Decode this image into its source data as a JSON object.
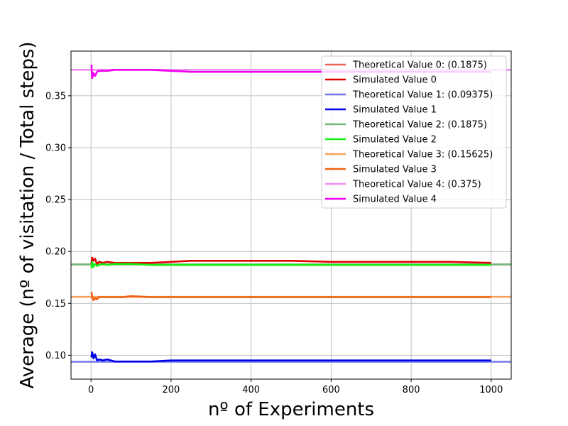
{
  "chart_data": {
    "type": "line",
    "title": "",
    "xlabel": "nº of Experiments",
    "ylabel": "Average (nº of visitation / Total steps)",
    "xlim": [
      -50,
      1050
    ],
    "ylim": [
      0.077,
      0.393
    ],
    "xticks": [
      0,
      200,
      400,
      600,
      800,
      1000
    ],
    "yticks": [
      0.1,
      0.15,
      0.2,
      0.25,
      0.3,
      0.35
    ],
    "xtick_labels": [
      "0",
      "200",
      "400",
      "600",
      "800",
      "1000"
    ],
    "ytick_labels": [
      "0.10",
      "0.15",
      "0.20",
      "0.25",
      "0.30",
      "0.35"
    ],
    "grid": true,
    "legend_position": "top-right",
    "theoretical": [
      {
        "name": "Theoretical Value 0: (0.1875)",
        "value": 0.1875,
        "color": "#f0605a"
      },
      {
        "name": "Theoretical Value 1: (0.09375)",
        "value": 0.09375,
        "color": "#7078f0"
      },
      {
        "name": "Theoretical Value 2: (0.1875)",
        "value": 0.1875,
        "color": "#72b87c"
      },
      {
        "name": "Theoretical Value 3: (0.15625)",
        "value": 0.15625,
        "color": "#f5a35c"
      },
      {
        "name": "Theoretical Value 4: (0.375)",
        "value": 0.375,
        "color": "#ee90ee"
      }
    ],
    "series": [
      {
        "name": "Simulated Value 0",
        "color": "#e00000",
        "x": [
          1,
          3,
          6,
          10,
          15,
          20,
          30,
          40,
          60,
          80,
          100,
          150,
          200,
          250,
          300,
          350,
          400,
          450,
          500,
          600,
          700,
          800,
          900,
          1000
        ],
        "y": [
          0.188,
          0.194,
          0.191,
          0.193,
          0.188,
          0.19,
          0.189,
          0.19,
          0.189,
          0.189,
          0.189,
          0.189,
          0.19,
          0.191,
          0.191,
          0.191,
          0.191,
          0.191,
          0.191,
          0.19,
          0.19,
          0.19,
          0.19,
          0.189
        ]
      },
      {
        "name": "Simulated Value 1",
        "color": "#0000e8",
        "x": [
          1,
          3,
          6,
          10,
          15,
          20,
          30,
          40,
          60,
          80,
          100,
          150,
          200,
          250,
          300,
          350,
          400,
          450,
          500,
          600,
          700,
          800,
          900,
          1000
        ],
        "y": [
          0.098,
          0.103,
          0.097,
          0.101,
          0.095,
          0.096,
          0.095,
          0.096,
          0.094,
          0.094,
          0.094,
          0.094,
          0.095,
          0.095,
          0.095,
          0.095,
          0.095,
          0.095,
          0.095,
          0.095,
          0.095,
          0.095,
          0.095,
          0.095
        ]
      },
      {
        "name": "Simulated Value 2",
        "color": "#16f016",
        "x": [
          1,
          3,
          6,
          10,
          15,
          20,
          30,
          40,
          60,
          80,
          100,
          150,
          200,
          250,
          300,
          350,
          400,
          450,
          500,
          600,
          700,
          800,
          900,
          1000
        ],
        "y": [
          0.184,
          0.19,
          0.185,
          0.188,
          0.186,
          0.187,
          0.188,
          0.187,
          0.188,
          0.188,
          0.188,
          0.187,
          0.187,
          0.187,
          0.187,
          0.187,
          0.187,
          0.187,
          0.187,
          0.187,
          0.187,
          0.187,
          0.187,
          0.187
        ]
      },
      {
        "name": "Simulated Value 3",
        "color": "#f06010",
        "x": [
          1,
          3,
          6,
          10,
          15,
          20,
          30,
          40,
          60,
          80,
          100,
          150,
          200,
          250,
          300,
          350,
          400,
          450,
          500,
          600,
          700,
          800,
          900,
          1000
        ],
        "y": [
          0.161,
          0.156,
          0.153,
          0.155,
          0.154,
          0.156,
          0.156,
          0.156,
          0.156,
          0.156,
          0.157,
          0.156,
          0.156,
          0.156,
          0.156,
          0.156,
          0.156,
          0.156,
          0.156,
          0.156,
          0.156,
          0.156,
          0.156,
          0.156
        ]
      },
      {
        "name": "Simulated Value 4",
        "color": "#f000f0",
        "x": [
          1,
          3,
          6,
          10,
          15,
          20,
          30,
          40,
          60,
          80,
          100,
          150,
          200,
          250,
          300,
          350,
          400,
          450,
          500,
          600,
          700,
          800,
          900,
          1000
        ],
        "y": [
          0.38,
          0.367,
          0.372,
          0.369,
          0.373,
          0.374,
          0.374,
          0.374,
          0.375,
          0.375,
          0.375,
          0.375,
          0.374,
          0.373,
          0.373,
          0.373,
          0.373,
          0.373,
          0.373,
          0.373,
          0.373,
          0.373,
          0.373,
          0.373
        ]
      }
    ]
  }
}
